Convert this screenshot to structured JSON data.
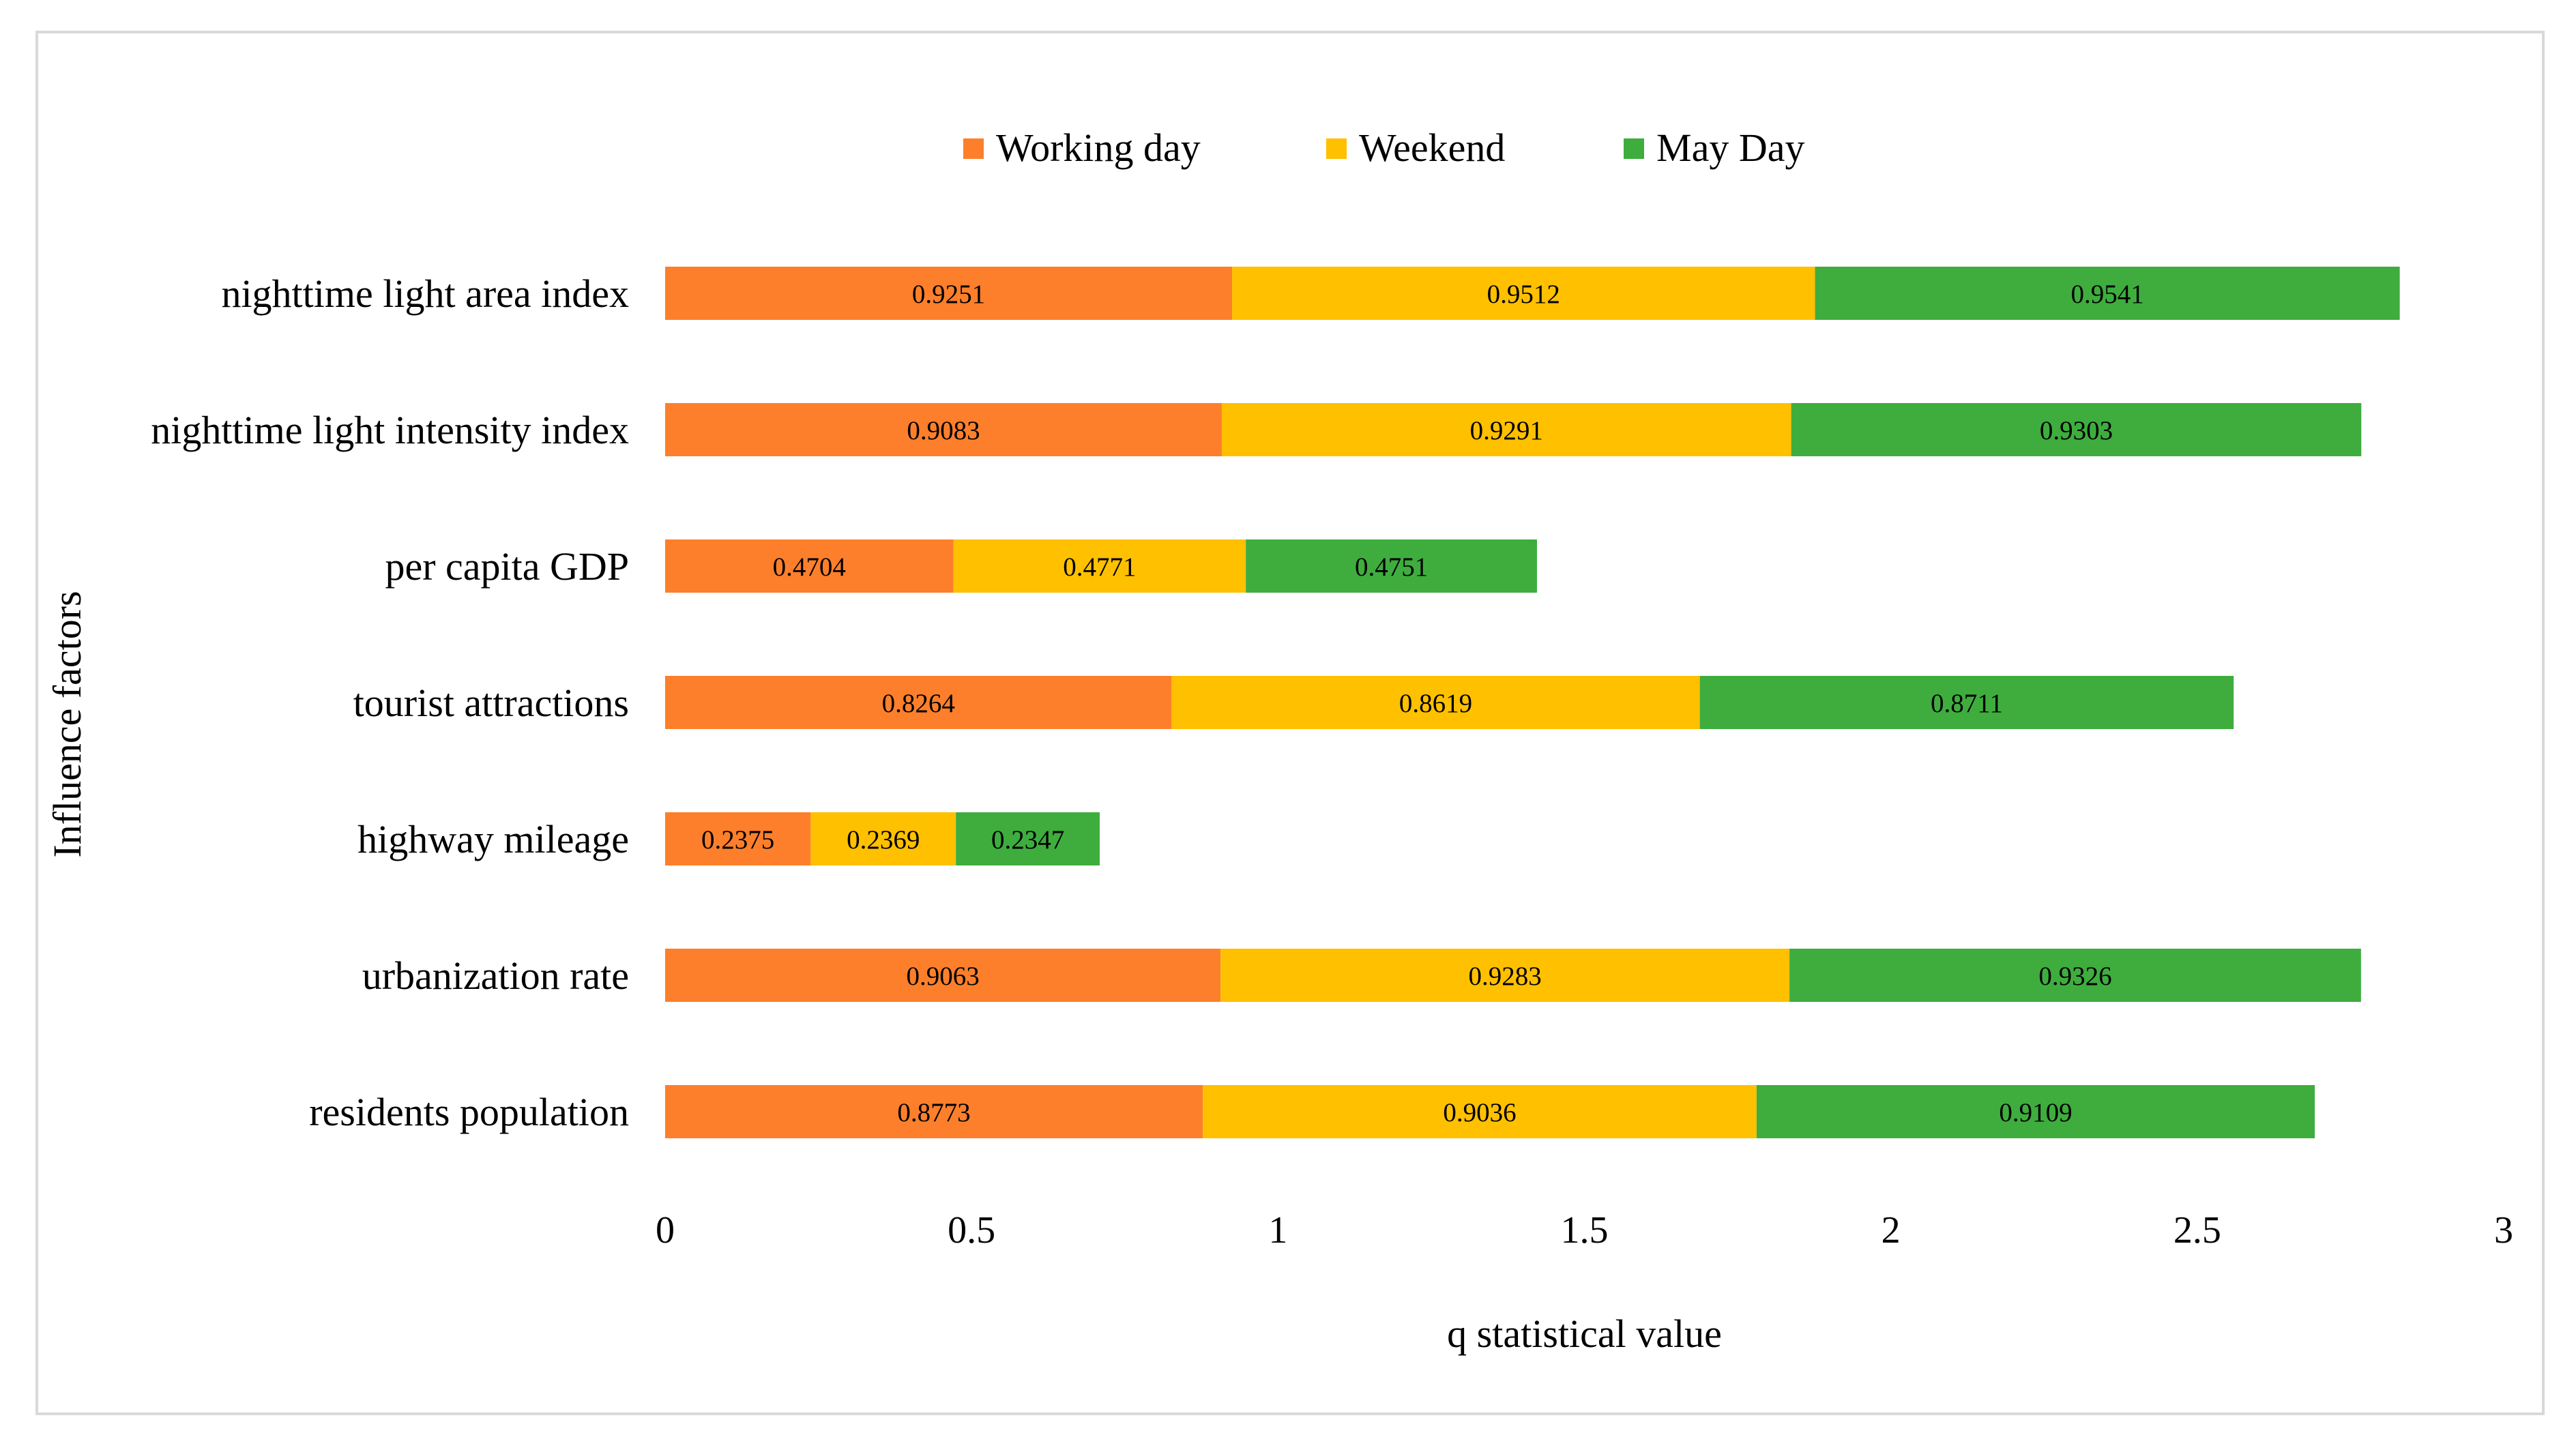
{
  "chart_data": {
    "type": "bar",
    "orientation": "horizontal",
    "stacked": true,
    "categories": [
      "nighttime light  area index",
      "nighttime light intensity index",
      "per capita GDP",
      "tourist attractions",
      "highway mileage",
      "urbanization rate",
      "residents population"
    ],
    "series": [
      {
        "name": "Working day",
        "color": "#fd7f2b",
        "values": [
          0.9251,
          0.9083,
          0.4704,
          0.8264,
          0.2375,
          0.9063,
          0.8773
        ]
      },
      {
        "name": "Weekend",
        "color": "#ffc000",
        "values": [
          0.9512,
          0.9291,
          0.4771,
          0.8619,
          0.2369,
          0.9283,
          0.9036
        ]
      },
      {
        "name": "May Day",
        "color": "#3ead3e",
        "values": [
          0.9541,
          0.9303,
          0.4751,
          0.8711,
          0.2347,
          0.9326,
          0.9109
        ]
      }
    ],
    "xlabel": "q statistical value",
    "ylabel": "Influence factors",
    "xlim": [
      0,
      3
    ],
    "xticks": [
      "0",
      "0.5",
      "1",
      "1.5",
      "2",
      "2.5",
      "3"
    ],
    "legend_position": "top-center",
    "grid": false
  }
}
